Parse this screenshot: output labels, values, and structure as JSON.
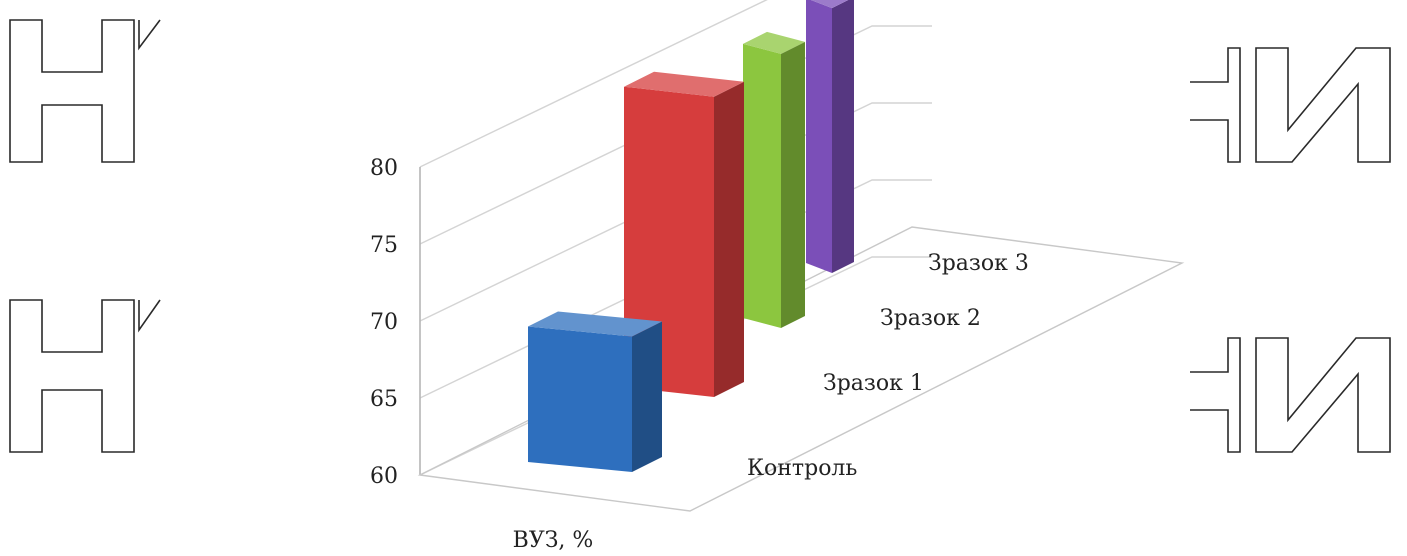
{
  "chart_data": {
    "type": "bar",
    "x_category": "ВУЗ, %",
    "series": [
      {
        "name": "Контроль",
        "values": [
          68.8
        ],
        "color": "#2e6fbe"
      },
      {
        "name": "Зразок 1",
        "values": [
          79.5
        ],
        "color": "#d63d3d"
      },
      {
        "name": "Зразок 2",
        "values": [
          77.8
        ],
        "color": "#8cc63f"
      },
      {
        "name": "Зразок 3",
        "values": [
          77.2
        ],
        "color": "#7b4fb8"
      }
    ],
    "ylim": [
      60,
      80
    ],
    "yticks": [
      "60",
      "65",
      "70",
      "75",
      "80"
    ],
    "grid": true
  }
}
